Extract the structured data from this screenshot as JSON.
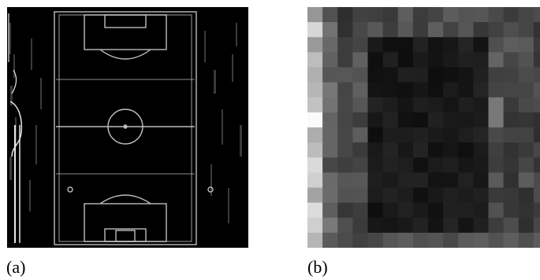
{
  "figure": {
    "panels": [
      {
        "id": "a",
        "label": "(a)",
        "content": "edge-map-soccer-field"
      },
      {
        "id": "b",
        "label": "(b)",
        "content": "pixelated-grayscale-soccer-field"
      }
    ],
    "colors": {
      "background": "#ffffff",
      "edge_line": "#d8d8d8",
      "field_dark": "#0c0c0c"
    }
  }
}
